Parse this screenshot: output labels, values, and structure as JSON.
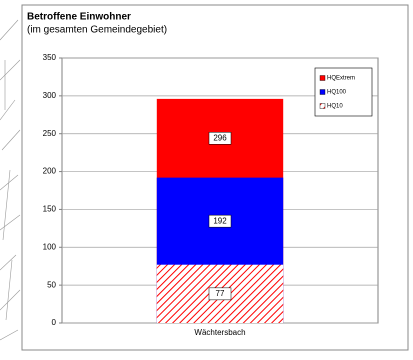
{
  "chart_data": {
    "type": "overlapping_bar",
    "title": "Betroffene Einwohner",
    "subtitle": "(im gesamten Gemeindegebiet)",
    "categories": [
      "Wächtersbach"
    ],
    "series": [
      {
        "name": "HQExtrem",
        "color": "#ff0000",
        "values": [
          296
        ]
      },
      {
        "name": "HQ100",
        "color": "#0000ff",
        "values": [
          192
        ]
      },
      {
        "name": "HQ10",
        "color": "#ff0000",
        "hatched": true,
        "values": [
          77
        ]
      }
    ],
    "ylim": [
      0,
      350
    ],
    "yticks": [
      0,
      50,
      100,
      150,
      200,
      250,
      300,
      350
    ],
    "grid": true,
    "legend": "top-right"
  }
}
